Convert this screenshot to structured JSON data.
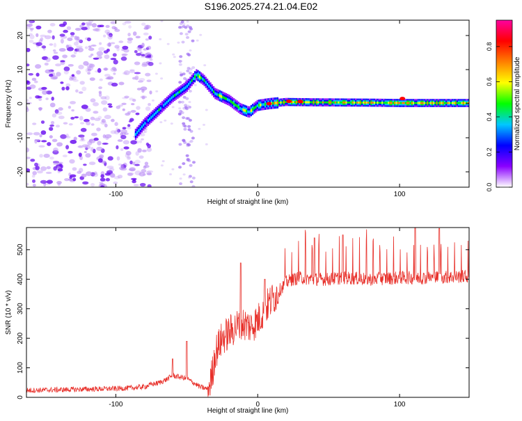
{
  "title": "S196.2025.274.21.04.E02",
  "chart_data": [
    {
      "id": "spectrogram",
      "type": "heatmap",
      "xlabel": "Height of straight line (km)",
      "ylabel": "Frequency (Hz)",
      "xlim": [
        -163,
        149
      ],
      "ylim": [
        -24.5,
        24.5
      ],
      "xticks": [
        -100,
        0,
        100
      ],
      "yticks": [
        -20,
        -10,
        0,
        10,
        20
      ],
      "ridge": {
        "x": [
          -86,
          -80,
          -70,
          -60,
          -50,
          -43,
          -38,
          -30,
          -20,
          -12,
          -6,
          0,
          8,
          20,
          40,
          80,
          100,
          120,
          149
        ],
        "y": [
          -9,
          -6,
          -2,
          2,
          5,
          8.5,
          7,
          3,
          1,
          -1.5,
          -2.5,
          -0.5,
          0,
          0.5,
          0.4,
          0.3,
          0.2,
          0.2,
          0.2
        ]
      },
      "colorbar": {
        "label": "Normalized spectral amplitude",
        "range": [
          0,
          0.95
        ],
        "ticks": [
          0.0,
          0.2,
          0.4,
          0.6,
          0.8
        ],
        "tick_labels": [
          "0.0",
          "0.2",
          "0.4",
          "0.6",
          "0.8"
        ],
        "colors": [
          "#ffffff",
          "#8a00ff",
          "#0000ff",
          "#00c8ff",
          "#00ff00",
          "#ffff00",
          "#ff8000",
          "#ff0000",
          "#ff00a0"
        ]
      },
      "color": "#7b2cf0"
    },
    {
      "id": "snr",
      "type": "line",
      "xlabel": "Height of straight line (km)",
      "ylabel": "SNR (10 * v/v)",
      "xlim": [
        -163,
        149
      ],
      "ylim": [
        0,
        575
      ],
      "xticks": [
        -100,
        0,
        100
      ],
      "yticks": [
        0,
        100,
        200,
        300,
        400,
        500
      ],
      "series": [
        {
          "name": "SNR",
          "color": "#e8302a",
          "x": [
            -163,
            -140,
            -120,
            -100,
            -90,
            -80,
            -75,
            -70,
            -65,
            -60,
            -55,
            -50,
            -45,
            -40,
            -35,
            -32,
            -30,
            -25,
            -20,
            -15,
            -10,
            -5,
            0,
            5,
            10,
            15,
            20,
            25,
            30,
            40,
            50,
            60,
            80,
            100,
            120,
            149
          ],
          "y": [
            20,
            22,
            24,
            26,
            28,
            32,
            40,
            45,
            55,
            70,
            65,
            60,
            45,
            30,
            25,
            80,
            150,
            200,
            220,
            240,
            250,
            240,
            260,
            300,
            330,
            360,
            390,
            400,
            405,
            400,
            400,
            405,
            400,
            405,
            405,
            410
          ],
          "peaks": [
            {
              "x": -50,
              "y": 190
            },
            {
              "x": -60,
              "y": 130
            },
            {
              "x": -12,
              "y": 455
            },
            {
              "x": 5,
              "y": 400
            },
            {
              "x": 40,
              "y": 540
            },
            {
              "x": 60,
              "y": 550
            },
            {
              "x": 111,
              "y": 578
            },
            {
              "x": 128,
              "y": 572
            }
          ]
        }
      ]
    }
  ]
}
